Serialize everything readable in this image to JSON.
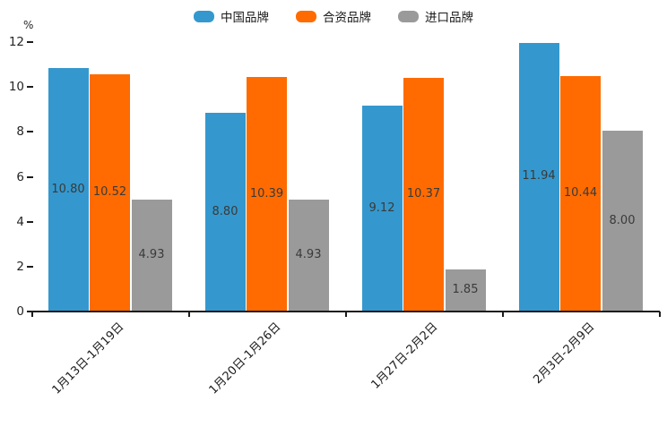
{
  "chart_data": {
    "type": "bar",
    "title": "",
    "ylabel": "%",
    "xlabel": "",
    "ylim": [
      0,
      12
    ],
    "yticks": [
      0,
      2,
      4,
      6,
      8,
      10,
      12
    ],
    "grid": false,
    "legend_position": "top-center",
    "value_labels": true,
    "value_label_format": "2-decimals",
    "categories": [
      "1月13日-1月19日",
      "1月20日-1月26日",
      "1月27日-2月2日",
      "2月3日-2月9日"
    ],
    "series": [
      {
        "name": "中国品牌",
        "color": "#3498CE",
        "values": [
          10.8,
          8.8,
          9.12,
          11.94
        ]
      },
      {
        "name": "合资品牌",
        "color": "#FF6B00",
        "values": [
          10.52,
          10.39,
          10.37,
          10.44
        ]
      },
      {
        "name": "进口品牌",
        "color": "#9A9A9A",
        "values": [
          4.93,
          4.93,
          1.85,
          8.0
        ]
      }
    ]
  },
  "colors": {
    "axis": "#1c1c1c",
    "tick_text": "#262626",
    "value_text": "#3a3a3a",
    "background": "#ffffff"
  }
}
